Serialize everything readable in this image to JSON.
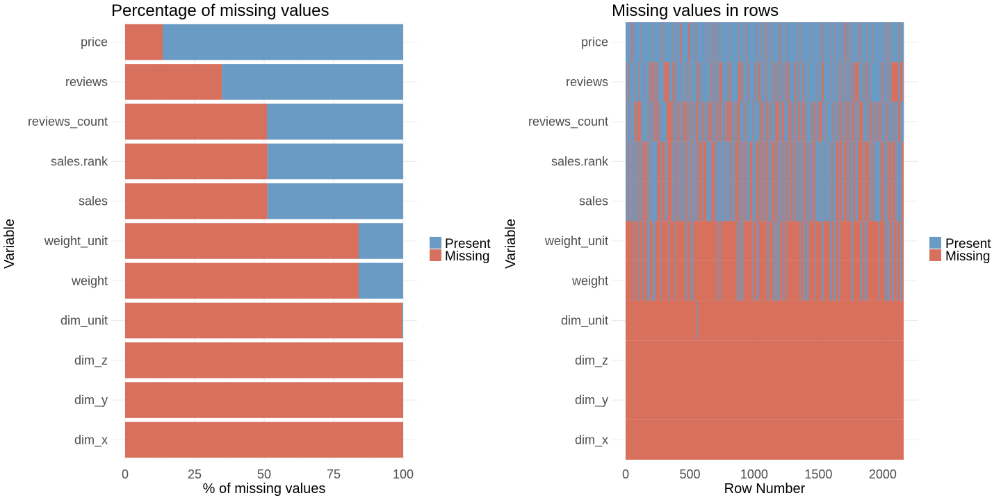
{
  "colors": {
    "present": "#6a9bc4",
    "missing": "#d8705e"
  },
  "chart_data": [
    {
      "type": "bar",
      "orientation": "horizontal",
      "stacked": true,
      "title": "Percentage of missing values",
      "xlabel": "% of missing values",
      "ylabel": "Variable",
      "xlim": [
        0,
        100
      ],
      "xticks": [
        0,
        25,
        50,
        75,
        100
      ],
      "categories": [
        "price",
        "reviews",
        "reviews_count",
        "sales.rank",
        "sales",
        "weight_unit",
        "weight",
        "dim_unit",
        "dim_z",
        "dim_y",
        "dim_x"
      ],
      "series": [
        {
          "name": "Missing",
          "values": [
            13.5,
            34.8,
            51.0,
            51.2,
            51.2,
            84.0,
            84.0,
            99.6,
            100,
            100,
            100
          ]
        },
        {
          "name": "Present",
          "values": [
            86.5,
            65.2,
            49.0,
            48.8,
            48.8,
            16.0,
            16.0,
            0.4,
            0,
            0,
            0
          ]
        }
      ],
      "legend": {
        "position": "right",
        "entries": [
          "Present",
          "Missing"
        ]
      },
      "grid": true
    },
    {
      "type": "heatmap",
      "title": "Missing values in rows",
      "xlabel": "Row Number",
      "ylabel": "Variable",
      "xlim": [
        0,
        2163
      ],
      "xticks": [
        0,
        500,
        1000,
        1500,
        2000
      ],
      "categories": [
        "price",
        "reviews",
        "reviews_count",
        "sales.rank",
        "sales",
        "weight_unit",
        "weight",
        "dim_unit",
        "dim_z",
        "dim_y",
        "dim_x"
      ],
      "missing_share": [
        0.135,
        0.348,
        0.51,
        0.512,
        0.512,
        0.84,
        0.84,
        0.996,
        1.0,
        1.0,
        1.0
      ],
      "legend": {
        "position": "right",
        "entries": [
          "Present",
          "Missing"
        ]
      },
      "grid": true
    }
  ]
}
